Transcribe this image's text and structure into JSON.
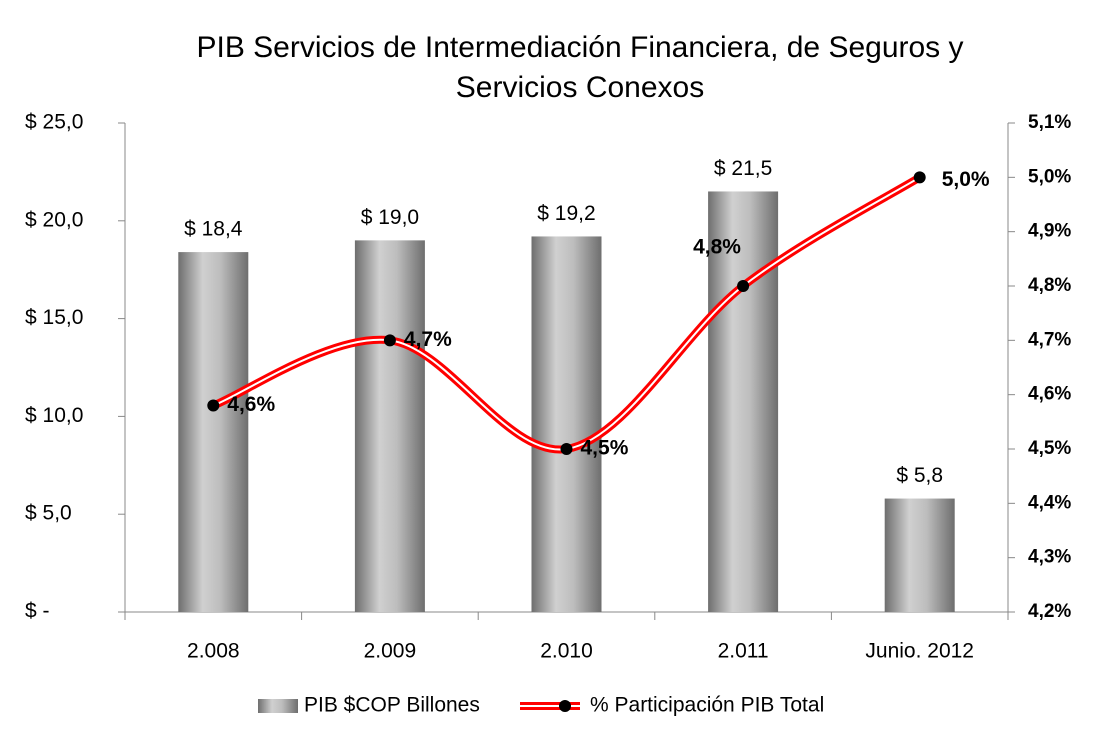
{
  "chart_data": {
    "type": "bar-line",
    "title": "PIB Servicios de Intermediación Financiera, de Seguros y Servicios Conexos",
    "categories": [
      "2.008",
      "2.009",
      "2.010",
      "2.011",
      "Junio. 2012"
    ],
    "series": [
      {
        "name": "PIB $COP Billones",
        "type": "bar",
        "color": "#a6a6a6",
        "values": [
          18.4,
          19.0,
          19.2,
          21.5,
          5.8
        ],
        "value_labels": [
          "$ 18,4",
          "$ 19,0",
          "$ 19,2",
          "$ 21,5",
          "$ 5,8"
        ]
      },
      {
        "name": "% Participación PIB Total",
        "type": "line",
        "axis": "y2",
        "color": "#ff0000",
        "values": [
          4.58,
          4.7,
          4.5,
          4.8,
          5.0
        ],
        "value_labels": [
          "4,6%",
          "4,7%",
          "4,5%",
          "4,8%",
          "5,0%"
        ]
      }
    ],
    "ylim": [
      0,
      25
    ],
    "yticks": [
      {
        "value": 0,
        "label": "$ -"
      },
      {
        "value": 5,
        "label": "$ 5,0"
      },
      {
        "value": 10,
        "label": "$ 10,0"
      },
      {
        "value": 15,
        "label": "$ 15,0"
      },
      {
        "value": 20,
        "label": "$ 20,0"
      },
      {
        "value": 25,
        "label": "$ 25,0"
      }
    ],
    "y2lim": [
      4.2,
      5.1
    ],
    "y2ticks": [
      {
        "value": 4.2,
        "label": "4,2%"
      },
      {
        "value": 4.3,
        "label": "4,3%"
      },
      {
        "value": 4.4,
        "label": "4,4%"
      },
      {
        "value": 4.5,
        "label": "4,5%"
      },
      {
        "value": 4.6,
        "label": "4,6%"
      },
      {
        "value": 4.7,
        "label": "4,7%"
      },
      {
        "value": 4.8,
        "label": "4,8%"
      },
      {
        "value": 4.9,
        "label": "4,9%"
      },
      {
        "value": 5.0,
        "label": "5,0%"
      },
      {
        "value": 5.1,
        "label": "5,1%"
      }
    ],
    "legend": "bottom"
  }
}
